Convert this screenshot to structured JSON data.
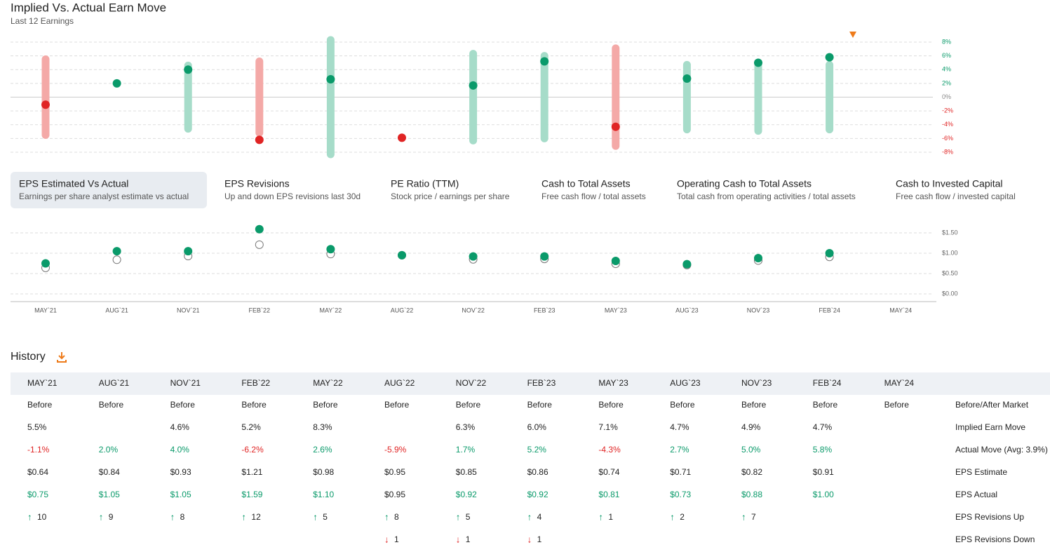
{
  "header": {
    "title": "Implied Vs. Actual Earn Move",
    "subtitle": "Last 12 Earnings"
  },
  "quarters": [
    "MAY`21",
    "AUG`21",
    "NOV`21",
    "FEB`22",
    "MAY`22",
    "AUG`22",
    "NOV`22",
    "FEB`23",
    "MAY`23",
    "AUG`23",
    "NOV`23",
    "FEB`24",
    "MAY`24"
  ],
  "earn_chart": {
    "implied": [
      5.5,
      null,
      4.6,
      5.2,
      8.3,
      null,
      6.3,
      6.0,
      7.1,
      4.7,
      4.9,
      4.7
    ],
    "actual": [
      -1.1,
      2.0,
      4.0,
      -6.2,
      2.6,
      -5.9,
      1.7,
      5.2,
      -4.3,
      2.7,
      5.0,
      5.8
    ],
    "ylim": [
      -8,
      8
    ],
    "yticks": [
      {
        "value": 8,
        "label": "8%"
      },
      {
        "value": 6,
        "label": "6%"
      },
      {
        "value": 4,
        "label": "4%"
      },
      {
        "value": 2,
        "label": "2%"
      },
      {
        "value": 0,
        "label": "0%"
      },
      {
        "value": -2,
        "label": "-2%"
      },
      {
        "value": -4,
        "label": "-4%"
      },
      {
        "value": -6,
        "label": "-6%"
      },
      {
        "value": -8,
        "label": "-8%"
      }
    ],
    "up_color": "#0a9a6a",
    "down_color": "#e02424",
    "up_bar": "#a6dcc9",
    "down_bar": "#f4a9a7"
  },
  "eps_chart": {
    "estimate": [
      0.64,
      0.84,
      0.93,
      1.21,
      0.98,
      0.95,
      0.85,
      0.86,
      0.74,
      0.71,
      0.82,
      0.91
    ],
    "actual": [
      0.75,
      1.05,
      1.05,
      1.59,
      1.1,
      0.95,
      0.92,
      0.92,
      0.81,
      0.73,
      0.88,
      1.0
    ],
    "ylim": [
      0,
      1.75
    ],
    "yticks": [
      {
        "value": 0,
        "label": "$0.00"
      },
      {
        "value": 0.5,
        "label": "$0.50"
      },
      {
        "value": 1,
        "label": "$1.00"
      },
      {
        "value": 1.5,
        "label": "$1.50"
      }
    ]
  },
  "tabs": [
    {
      "title": "EPS Estimated Vs Actual",
      "subtitle": "Earnings per share analyst estimate vs actual"
    },
    {
      "title": "EPS Revisions",
      "subtitle": "Up and down EPS revisions last 30d"
    },
    {
      "title": "PE Ratio (TTM)",
      "subtitle": "Stock price / earnings per share"
    },
    {
      "title": "Cash to Total Assets",
      "subtitle": "Free cash flow / total assets"
    },
    {
      "title": "Operating Cash to Total Assets",
      "subtitle": "Total cash from operating activities / total assets"
    },
    {
      "title": "Cash to Invested Capital",
      "subtitle": "Free cash flow / invested capital"
    }
  ],
  "history": {
    "title": "History",
    "rows": [
      {
        "label": "Before/After Market",
        "cells": [
          "Before",
          "Before",
          "Before",
          "Before",
          "Before",
          "Before",
          "Before",
          "Before",
          "Before",
          "Before",
          "Before",
          "Before",
          "Before"
        ]
      },
      {
        "label": "Implied Earn Move",
        "cells": [
          "5.5%",
          null,
          "4.6%",
          "5.2%",
          "8.3%",
          null,
          "6.3%",
          "6.0%",
          "7.1%",
          "4.7%",
          "4.9%",
          "4.7%",
          null
        ]
      },
      {
        "label": "Actual Move (Avg: 3.9%)",
        "cells": [
          "-1.1%",
          "2.0%",
          "4.0%",
          "-6.2%",
          "2.6%",
          "-5.9%",
          "1.7%",
          "5.2%",
          "-4.3%",
          "2.7%",
          "5.0%",
          "5.8%",
          null
        ]
      },
      {
        "label": "EPS Estimate",
        "cells": [
          "$0.64",
          "$0.84",
          "$0.93",
          "$1.21",
          "$0.98",
          "$0.95",
          "$0.85",
          "$0.86",
          "$0.74",
          "$0.71",
          "$0.82",
          "$0.91",
          null
        ]
      },
      {
        "label": "EPS Actual",
        "cells": [
          "$0.75",
          "$1.05",
          "$1.05",
          "$1.59",
          "$1.10",
          "$0.95",
          "$0.92",
          "$0.92",
          "$0.81",
          "$0.73",
          "$0.88",
          "$1.00",
          null
        ]
      },
      {
        "label": "EPS Revisions Up",
        "cells": [
          10,
          9,
          8,
          12,
          5,
          8,
          5,
          4,
          1,
          2,
          7,
          null,
          null
        ]
      },
      {
        "label": "EPS Revisions Down",
        "cells": [
          null,
          null,
          null,
          null,
          null,
          1,
          1,
          1,
          null,
          null,
          null,
          null,
          null
        ]
      }
    ]
  }
}
